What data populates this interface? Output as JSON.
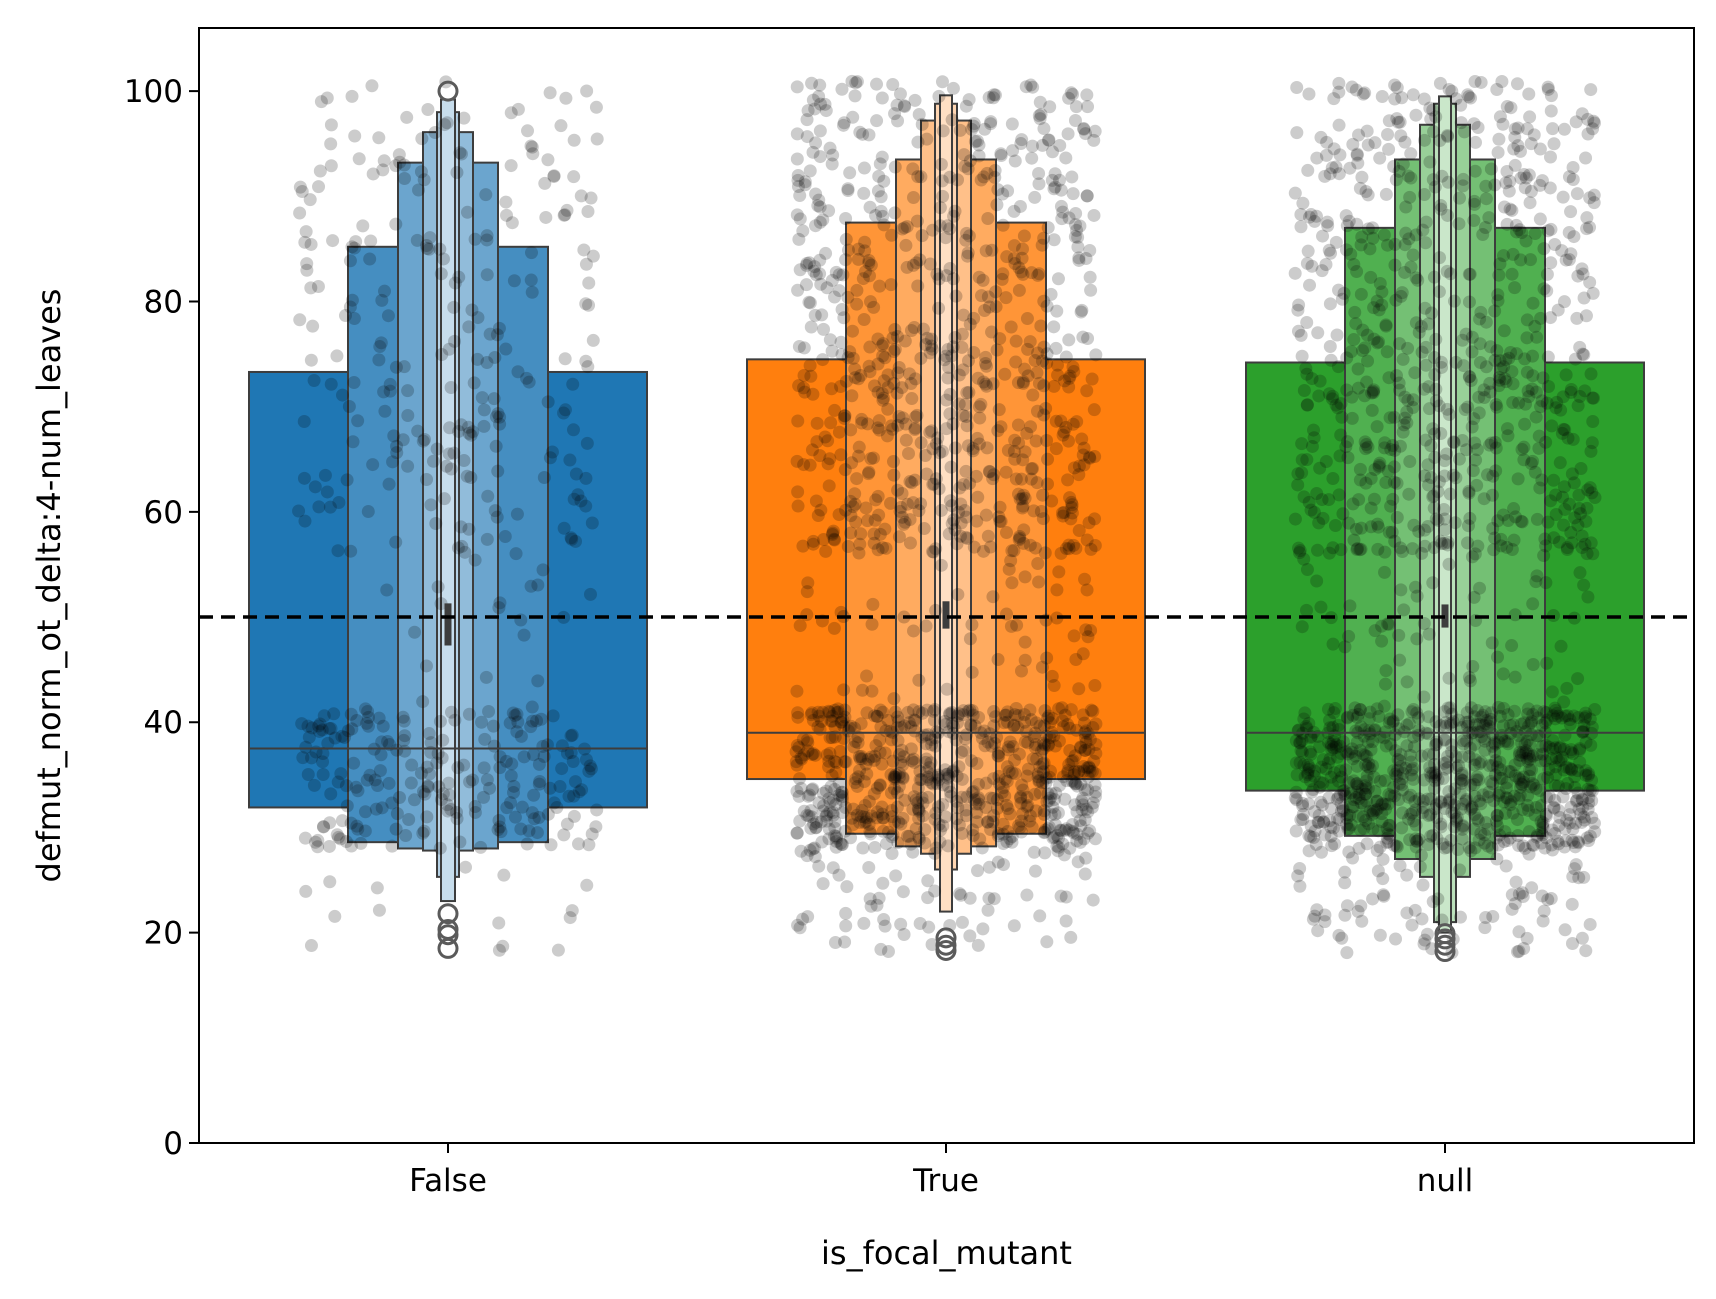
{
  "chart_data": {
    "type": "boxen",
    "xlabel": "is_focal_mutant",
    "ylabel": "defmut_norm_ot_delta:4-num_leaves",
    "ylim": [
      0,
      106
    ],
    "yticks": [
      0,
      20,
      40,
      60,
      80,
      100
    ],
    "reference_line": {
      "y": 50,
      "style": "dashed",
      "color": "#000000"
    },
    "grid": false,
    "legend": "none",
    "categories": [
      "False",
      "True",
      "null"
    ],
    "colors": [
      "#1f77b4",
      "#ff7f0e",
      "#2ca02c"
    ],
    "series": [
      {
        "category": "False",
        "median": 37.5,
        "mean_ci": [
          47.3,
          51.3
        ],
        "letter_values": [
          [
            31.9,
            73.3
          ],
          [
            28.6,
            85.2
          ],
          [
            28.0,
            93.2
          ],
          [
            27.8,
            96.1
          ],
          [
            25.3,
            98.0
          ],
          [
            23.0,
            99.2
          ]
        ],
        "outliers": [
          18.5,
          19.8,
          20.3,
          21.8,
          100.0
        ],
        "n_points": 500
      },
      {
        "category": "True",
        "median": 39.0,
        "mean_ci": [
          48.9,
          51.5
        ],
        "letter_values": [
          [
            34.6,
            74.5
          ],
          [
            29.4,
            87.5
          ],
          [
            28.2,
            93.5
          ],
          [
            27.5,
            97.2
          ],
          [
            26.0,
            98.8
          ],
          [
            22.0,
            99.6
          ]
        ],
        "outliers": [
          18.3,
          18.8,
          19.5
        ],
        "n_points": 1500
      },
      {
        "category": "null",
        "median": 39.0,
        "mean_ci": [
          49.0,
          51.2
        ],
        "letter_values": [
          [
            33.5,
            74.2
          ],
          [
            29.2,
            87.0
          ],
          [
            27.0,
            93.5
          ],
          [
            25.3,
            96.8
          ],
          [
            21.0,
            98.8
          ],
          [
            20.0,
            99.5
          ]
        ],
        "outliers": [
          18.2,
          18.8,
          19.4,
          19.9
        ],
        "n_points": 1600
      }
    ]
  }
}
